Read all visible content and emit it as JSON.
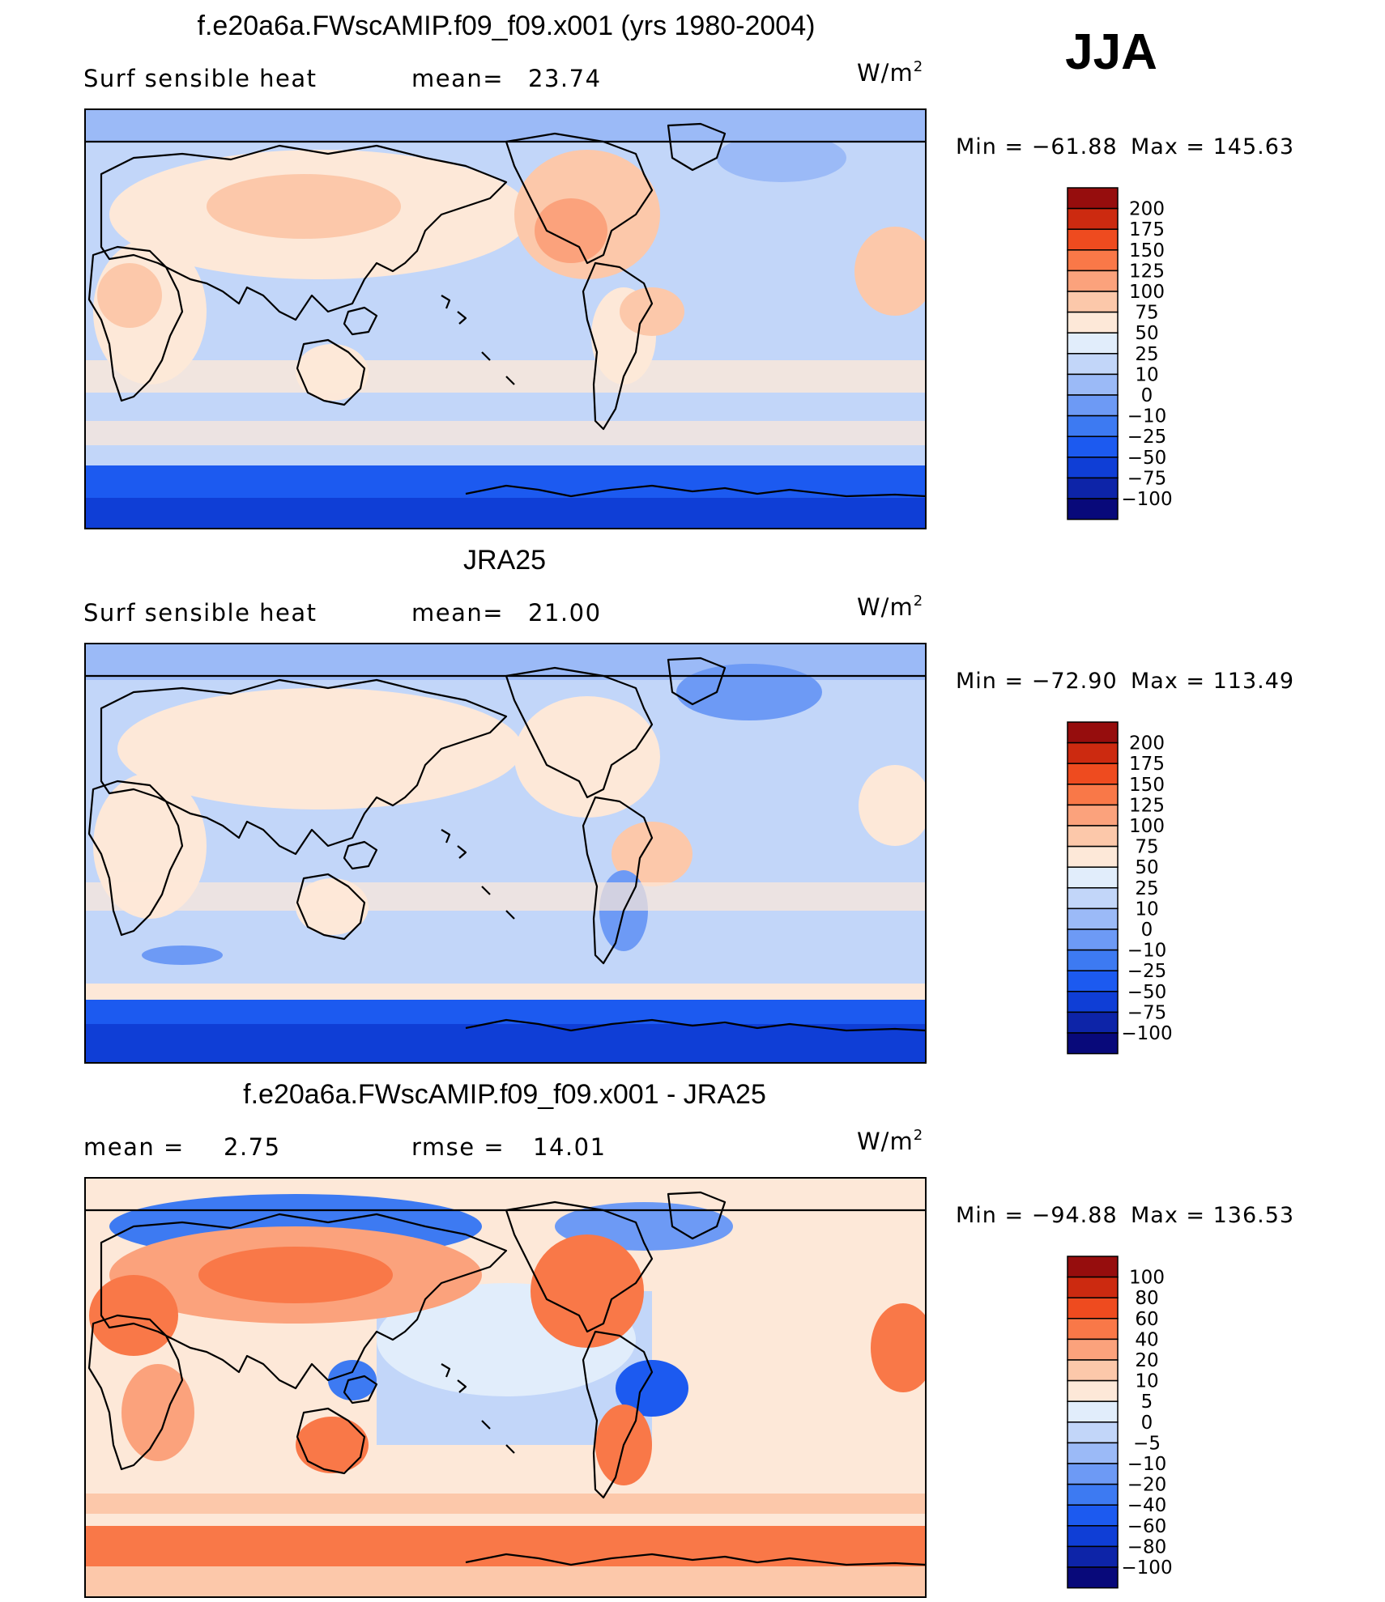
{
  "season": "JJA",
  "units_base": "W/m",
  "units_exp": "2",
  "colors": {
    "levels_16": [
      "#08097a",
      "#0d24a8",
      "#0f3ed6",
      "#1c5af0",
      "#3d7af2",
      "#6d9af5",
      "#9bbaf7",
      "#c2d6f9",
      "#e1edfb",
      "#fde8d8",
      "#fcc8aa",
      "#fba27c",
      "#f97848",
      "#ee4b1f",
      "#cc2a10",
      "#960d0d"
    ]
  },
  "chart_data": [
    {
      "type": "contour-map",
      "title": "f.e20a6a.FWscAMIP.f09_f09.x001 (yrs 1980-2004)",
      "left_label": "Surf  sensible  heat",
      "stat_label": "mean=",
      "stat_value": "23.74",
      "min_label": "Min  =  −61.88",
      "max_label": "Max  =  145.63",
      "min": -61.88,
      "max": 145.63,
      "levels": [
        "200",
        "175",
        "150",
        "125",
        "100",
        "75",
        "50",
        "25",
        "10",
        "0",
        "−10",
        "−25",
        "−50",
        "−75",
        "−100"
      ]
    },
    {
      "type": "contour-map",
      "title": "JRA25",
      "left_label": "Surf  sensible  heat",
      "stat_label": "mean=",
      "stat_value": "21.00",
      "min_label": "Min  =  −72.90",
      "max_label": "Max  =  113.49",
      "min": -72.9,
      "max": 113.49,
      "levels": [
        "200",
        "175",
        "150",
        "125",
        "100",
        "75",
        "50",
        "25",
        "10",
        "0",
        "−10",
        "−25",
        "−50",
        "−75",
        "−100"
      ]
    },
    {
      "type": "contour-map",
      "title": "f.e20a6a.FWscAMIP.f09_f09.x001 - JRA25",
      "left_label": "mean  =",
      "left_value": "2.75",
      "stat_label": "rmse  =",
      "stat_value": "14.01",
      "min_label": "Min  =  −94.88",
      "max_label": "Max  =  136.53",
      "min": -94.88,
      "max": 136.53,
      "levels": [
        "100",
        "80",
        "60",
        "40",
        "20",
        "10",
        "5",
        "0",
        "−5",
        "−10",
        "−20",
        "−40",
        "−60",
        "−80",
        "−100"
      ]
    }
  ]
}
